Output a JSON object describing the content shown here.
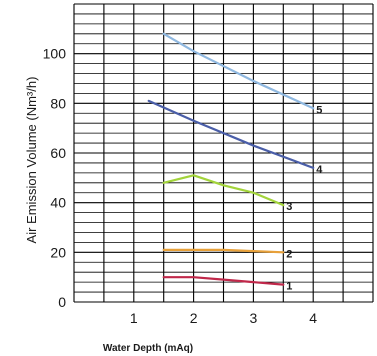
{
  "chart_data": {
    "type": "line",
    "title": "",
    "xlabel": "Water Depth (mAq)",
    "ylabel": "Air Emission Volume (Nm³/h)",
    "xlim": [
      0,
      5
    ],
    "ylim": [
      0,
      120
    ],
    "x_ticks": [
      1,
      2,
      3,
      4
    ],
    "y_ticks": [
      0,
      20,
      40,
      60,
      80,
      100
    ],
    "grid": true,
    "series": [
      {
        "name": "1",
        "color": "#c0284a",
        "x": [
          1.5,
          2.0,
          2.5,
          3.0,
          3.5
        ],
        "y": [
          10,
          10,
          9,
          8,
          7
        ]
      },
      {
        "name": "2",
        "color": "#e8a13a",
        "x": [
          1.5,
          2.0,
          2.5,
          3.0,
          3.5
        ],
        "y": [
          21,
          21,
          21,
          20.5,
          20
        ]
      },
      {
        "name": "3",
        "color": "#a3d43b",
        "x": [
          1.5,
          2.0,
          2.5,
          3.0,
          3.5
        ],
        "y": [
          48,
          51,
          47,
          44,
          39
        ]
      },
      {
        "name": "4",
        "color": "#4a5ea8",
        "x": [
          1.25,
          2.0,
          3.0,
          4.0
        ],
        "y": [
          81,
          73,
          63,
          54
        ]
      },
      {
        "name": "5",
        "color": "#8fb8e0",
        "x": [
          1.5,
          2.0,
          3.0,
          4.0
        ],
        "y": [
          108,
          101,
          89,
          78
        ]
      }
    ]
  }
}
